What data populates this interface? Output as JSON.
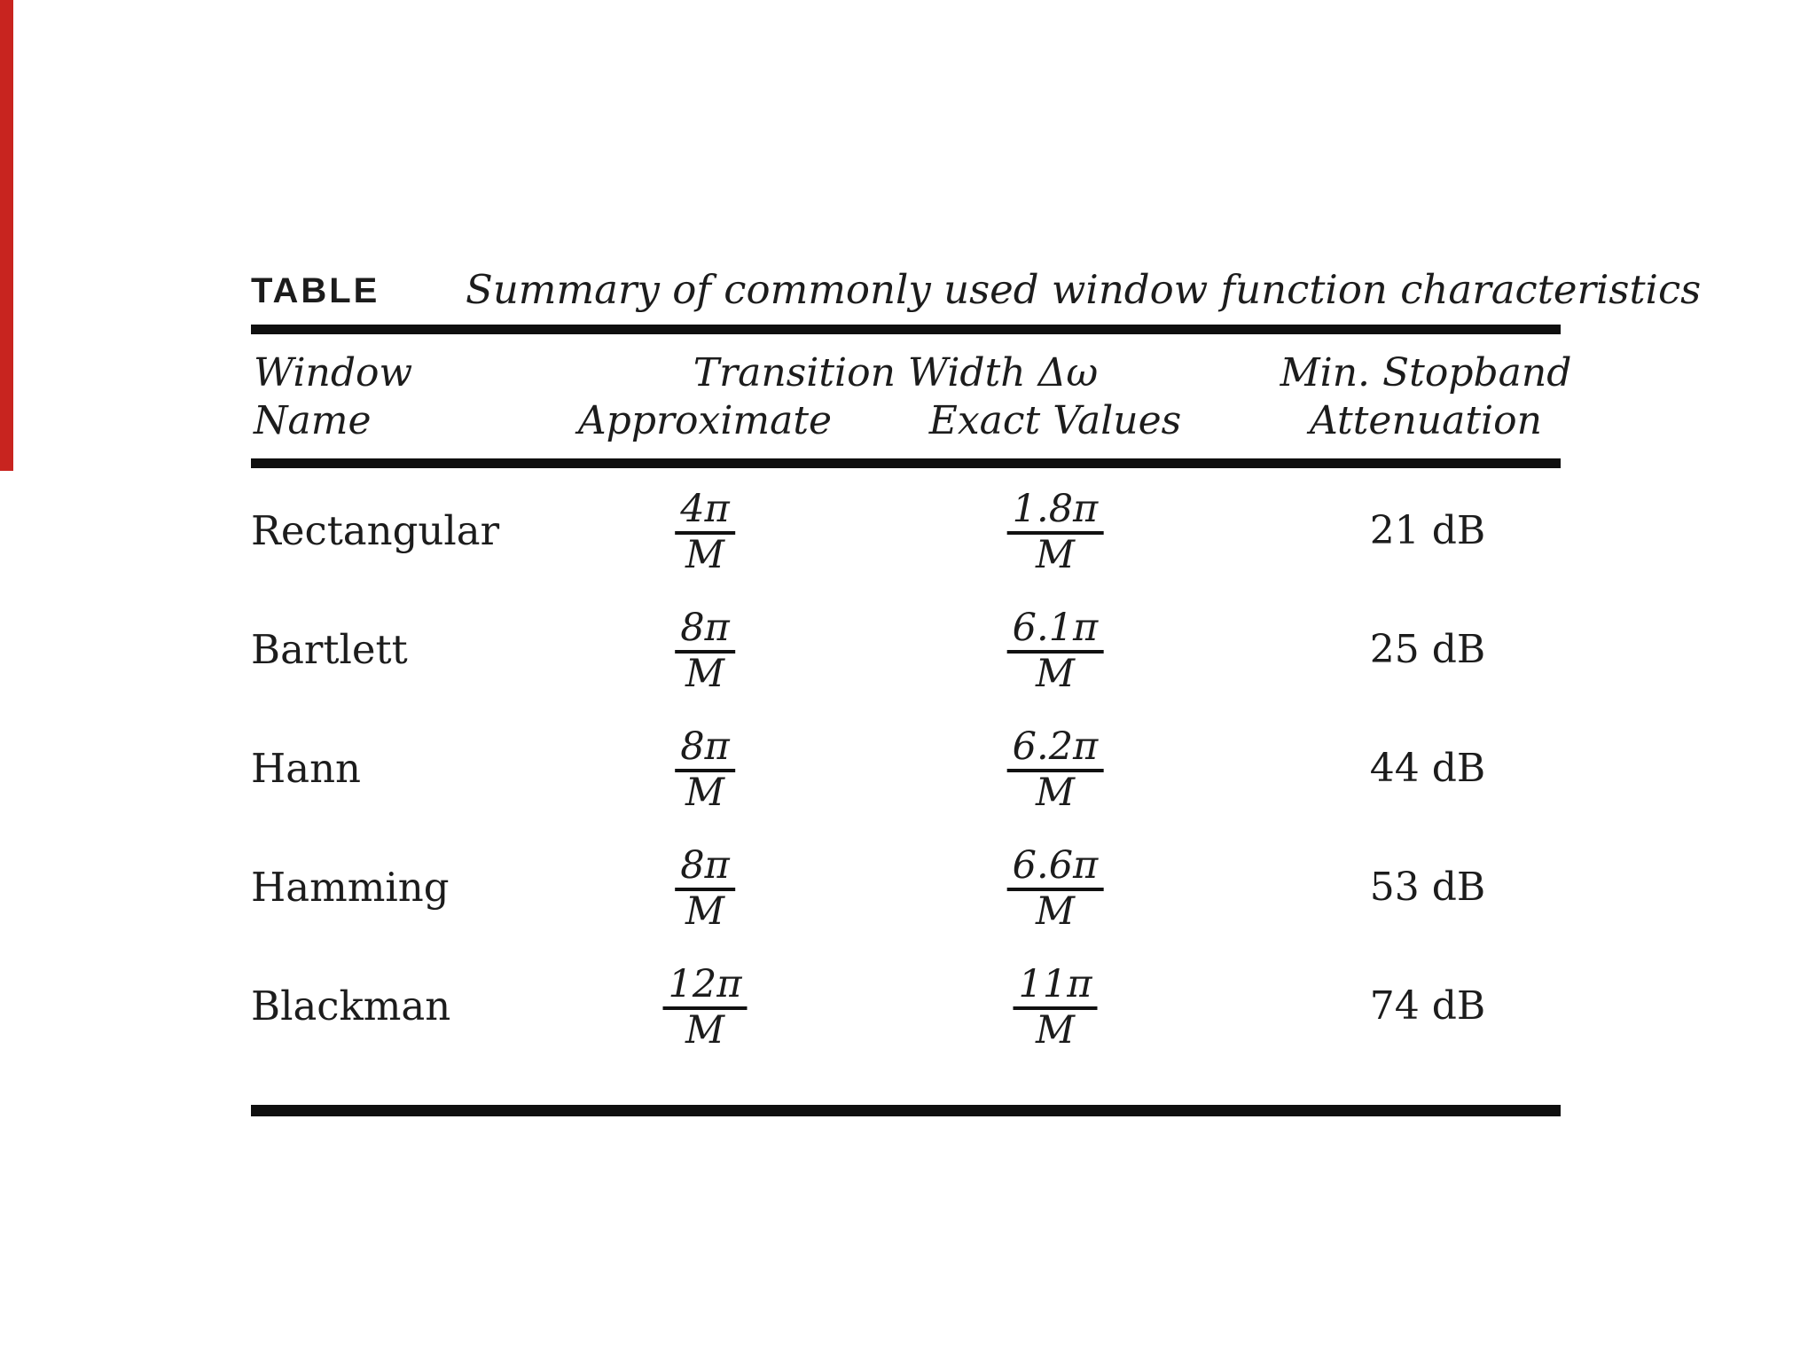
{
  "page": {
    "red_bar_color": "#c8241f",
    "ink_color": "#1c1c1c"
  },
  "table": {
    "label": "TABLE",
    "title": "Summary of commonly used window function characteristics",
    "header": {
      "window_line1": "Window",
      "window_line2": "Name",
      "group": "Transition Width Δω",
      "approximate": "Approximate",
      "exact": "Exact Values",
      "stopband_line1": "Min. Stopband",
      "stopband_line2": "Attenuation"
    },
    "rows": [
      {
        "name": "Rectangular",
        "approx_num": "4π",
        "approx_den": "M",
        "exact_num": "1.8π",
        "exact_den": "M",
        "attenuation": "21 dB"
      },
      {
        "name": "Bartlett",
        "approx_num": "8π",
        "approx_den": "M",
        "exact_num": "6.1π",
        "exact_den": "M",
        "attenuation": "25 dB"
      },
      {
        "name": "Hann",
        "approx_num": "8π",
        "approx_den": "M",
        "exact_num": "6.2π",
        "exact_den": "M",
        "attenuation": "44 dB"
      },
      {
        "name": "Hamming",
        "approx_num": "8π",
        "approx_den": "M",
        "exact_num": "6.6π",
        "exact_den": "M",
        "attenuation": "53 dB"
      },
      {
        "name": "Blackman",
        "approx_num": "12π",
        "approx_den": "M",
        "exact_num": "11π",
        "exact_den": "M",
        "attenuation": "74 dB"
      }
    ]
  },
  "chart_data": {
    "type": "table",
    "title": "Summary of commonly used window function characteristics",
    "columns": [
      "Window Name",
      "Transition Width Δω (Approximate)",
      "Transition Width Δω (Exact Values)",
      "Min. Stopband Attenuation"
    ],
    "rows": [
      [
        "Rectangular",
        "4π/M",
        "1.8π/M",
        "21 dB"
      ],
      [
        "Bartlett",
        "8π/M",
        "6.1π/M",
        "25 dB"
      ],
      [
        "Hann",
        "8π/M",
        "6.2π/M",
        "44 dB"
      ],
      [
        "Hamming",
        "8π/M",
        "6.6π/M",
        "53 dB"
      ],
      [
        "Blackman",
        "12π/M",
        "11π/M",
        "74 dB"
      ]
    ]
  }
}
